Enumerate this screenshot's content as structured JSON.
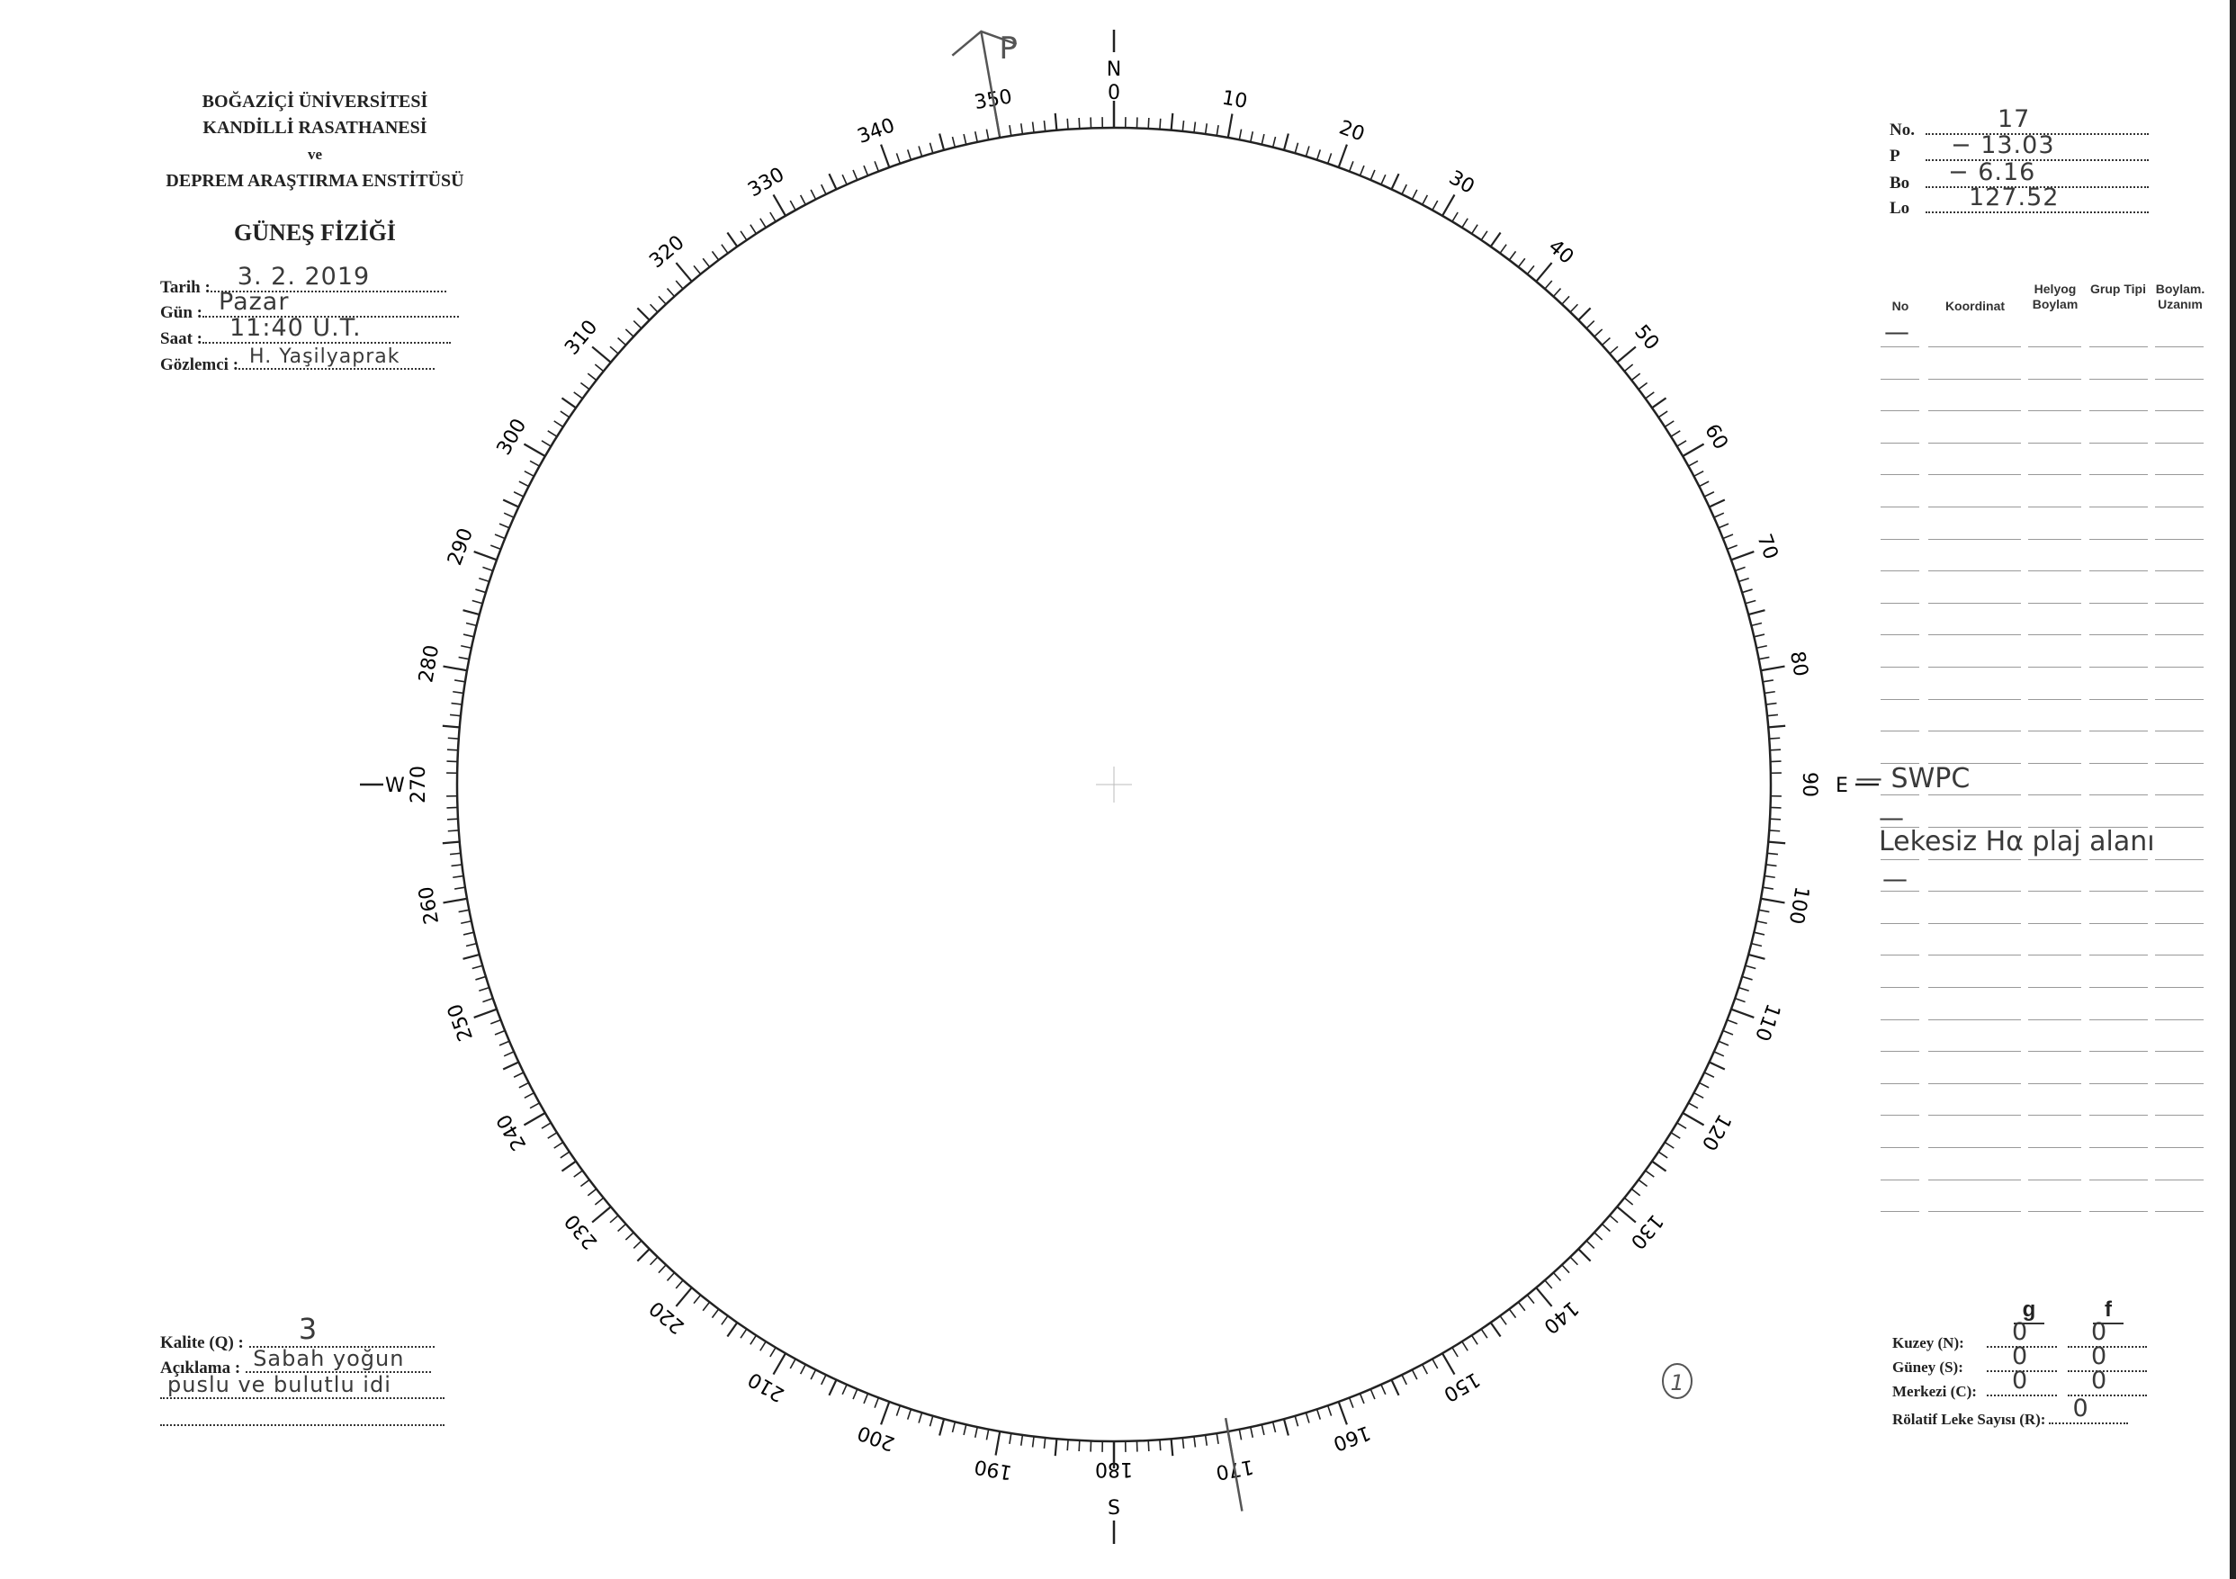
{
  "header": {
    "institution_lines": [
      "BOĞAZİÇİ ÜNİVERSİTESİ",
      "KANDİLLİ RASATHANESİ",
      "ve",
      "DEPREM ARAŞTIRMA ENSTİTÜSÜ"
    ],
    "section_title": "GÜNEŞ FİZİĞİ"
  },
  "observation": {
    "fields": [
      {
        "label": "Tarih :",
        "value": "3. 2. 2019"
      },
      {
        "label": "Gün :",
        "value": "Pazar"
      },
      {
        "label": "Saat :",
        "value": "11:40 U.T."
      },
      {
        "label": "Gözlemci :",
        "value": "H. Yaşilyaprak"
      }
    ]
  },
  "parameters": [
    {
      "label": "No.",
      "value": "17"
    },
    {
      "label": "P",
      "value": "− 13.03"
    },
    {
      "label": "Bo",
      "value": "− 6.16"
    },
    {
      "label": "Lo",
      "value": "127.52"
    }
  ],
  "table": {
    "headers": [
      "No",
      "Koordinat",
      "Helyog Boylam",
      "Grup Tipi",
      "Boylam. Uzanım"
    ],
    "entries": {
      "first_dash": "—",
      "swpc": "— SWPC",
      "dash2": "—",
      "note": "Lekesiz Hα plaj alanı",
      "dash3": "—"
    }
  },
  "quality": {
    "kalite_label": "Kalite (Q) :",
    "kalite_value": "3",
    "aciklama_label": "Açıklama :",
    "aciklama_line1": "Sabah yoğun",
    "aciklama_line2": "puslu ve bulutlu idi"
  },
  "counts": {
    "col_g": "g",
    "col_f": "f",
    "rows": [
      {
        "label": "Kuzey (N):",
        "g": "0",
        "f": "0"
      },
      {
        "label": "Güney (S):",
        "g": "0",
        "f": "0"
      },
      {
        "label": "Merkezi (C):",
        "g": "0",
        "f": "0"
      }
    ],
    "relative_label": "Rölatif Leke Sayısı (R):",
    "relative_value": "0"
  },
  "dial": {
    "north": "N",
    "south": "S",
    "east": "E",
    "west": "W",
    "pole_label": "P",
    "pole_angle_deg": 350,
    "axis_mark_angle_deg": 170,
    "labels": [
      "0",
      "10",
      "20",
      "30",
      "40",
      "50",
      "60",
      "70",
      "80",
      "90",
      "100",
      "110",
      "120",
      "130",
      "140",
      "150",
      "160",
      "170",
      "180",
      "190",
      "200",
      "210",
      "220",
      "230",
      "240",
      "250",
      "260",
      "270",
      "280",
      "290",
      "300",
      "310",
      "320",
      "330",
      "340",
      "350"
    ],
    "page_mark": "1",
    "ink_color": "#222222",
    "handwriting_color": "#3a3a3a"
  }
}
